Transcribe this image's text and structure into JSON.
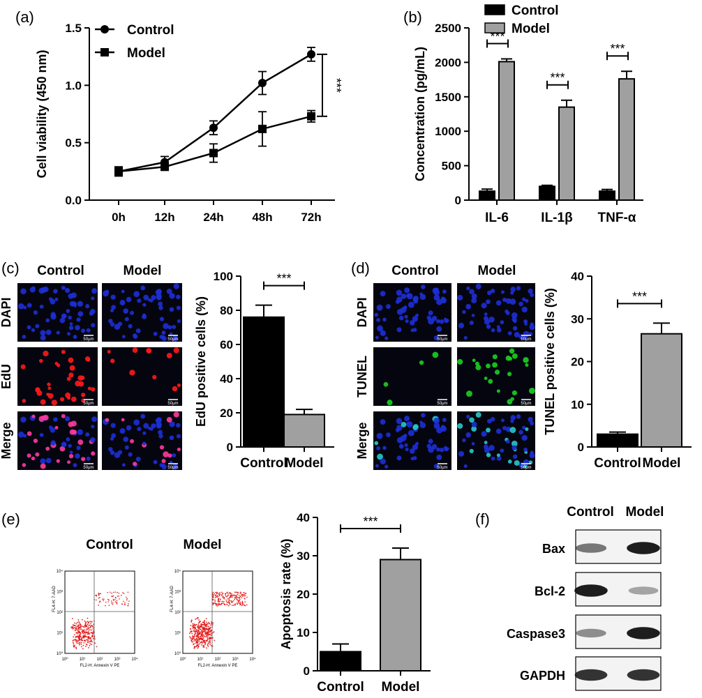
{
  "panel_labels": {
    "a": "(a)",
    "b": "(b)",
    "c": "(c)",
    "d": "(d)",
    "e": "(e)",
    "f": "(f)"
  },
  "colors": {
    "control": "#000000",
    "model": "#a0a0a0",
    "dapi": "#1d2fd6",
    "edu": "#ff1a1a",
    "tunel": "#19d11e",
    "merge": "#ff3aa0"
  },
  "micro": {
    "scale_label": "50μm"
  },
  "chart_data": [
    {
      "id": "a",
      "type": "line",
      "categories": [
        "0h",
        "12h",
        "24h",
        "48h",
        "72h"
      ],
      "series": [
        {
          "name": "Control",
          "marker": "circle",
          "values": [
            0.25,
            0.33,
            0.63,
            1.02,
            1.27
          ],
          "err": [
            0.04,
            0.05,
            0.06,
            0.1,
            0.06
          ]
        },
        {
          "name": "Model",
          "marker": "square",
          "values": [
            0.25,
            0.29,
            0.41,
            0.62,
            0.73
          ],
          "err": [
            0.04,
            0.03,
            0.08,
            0.15,
            0.05
          ]
        }
      ],
      "ylabel": "Cell viability (450 nm)",
      "ylim": [
        0,
        1.5
      ],
      "yticks": [
        "0.0",
        "0.5",
        "1.0",
        "1.5"
      ],
      "significance": "***",
      "legend_position": "top-left"
    },
    {
      "id": "b",
      "type": "bar",
      "categories": [
        "IL-6",
        "IL-1β",
        "TNF-α"
      ],
      "series": [
        {
          "name": "Control",
          "values": [
            130,
            200,
            130
          ],
          "err": [
            30,
            15,
            25
          ]
        },
        {
          "name": "Model",
          "values": [
            2010,
            1350,
            1760
          ],
          "err": [
            40,
            100,
            110
          ]
        }
      ],
      "ylabel": "Concentration (pg/mL)",
      "ylim": [
        0,
        2500
      ],
      "yticks": [
        "0",
        "500",
        "1000",
        "1500",
        "2000",
        "2500"
      ],
      "significance": [
        "***",
        "***",
        "***"
      ],
      "legend_position": "top"
    },
    {
      "id": "c",
      "type": "bar",
      "categories": [
        "Control",
        "Model"
      ],
      "values": [
        76,
        19
      ],
      "err": [
        7,
        3
      ],
      "ylabel": "EdU positive cells (%)",
      "ylim": [
        0,
        100
      ],
      "yticks": [
        "0",
        "20",
        "40",
        "60",
        "80",
        "100"
      ],
      "significance": "***"
    },
    {
      "id": "d",
      "type": "bar",
      "categories": [
        "Control",
        "Model"
      ],
      "values": [
        3,
        26.5
      ],
      "err": [
        0.5,
        2.5
      ],
      "ylabel": "TUNEL positive cells (%)",
      "ylim": [
        0,
        40
      ],
      "yticks": [
        "0",
        "10",
        "20",
        "30",
        "40"
      ],
      "significance": "***"
    },
    {
      "id": "e",
      "type": "bar",
      "categories": [
        "Control",
        "Model"
      ],
      "values": [
        5,
        29
      ],
      "err": [
        2,
        3
      ],
      "ylabel": "Apoptosis rate (%)",
      "ylim": [
        0,
        40
      ],
      "yticks": [
        "0",
        "10",
        "20",
        "30",
        "40"
      ],
      "significance": "***"
    }
  ],
  "panel_c": {
    "columns": [
      "Control",
      "Model"
    ],
    "rows": [
      "DAPI",
      "EdU",
      "Merge"
    ]
  },
  "panel_d": {
    "columns": [
      "Control",
      "Model"
    ],
    "rows": [
      "DAPI",
      "TUNEL",
      "Merge"
    ]
  },
  "panel_e": {
    "titles": [
      "Control",
      "Model"
    ],
    "x_axis_label": "FL2-H: Annexin V PE",
    "y_axis_label": "FL4-H: 7-AAD",
    "ticks": [
      "10⁰",
      "10¹",
      "10²",
      "10³",
      "10⁴"
    ]
  },
  "panel_f": {
    "columns": [
      "Control",
      "Model"
    ],
    "rows": [
      "Bax",
      "Bcl-2",
      "Caspase3",
      "GAPDH"
    ],
    "intensity": [
      [
        0.55,
        0.95
      ],
      [
        0.95,
        0.35
      ],
      [
        0.45,
        0.95
      ],
      [
        0.85,
        0.85
      ]
    ]
  }
}
